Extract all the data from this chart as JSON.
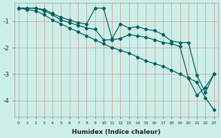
{
  "xlabel": "Humidex (Indice chaleur)",
  "ylabel": "",
  "background_color": "#cceee8",
  "grid_color": "#d4a0a0",
  "line_color": "#006060",
  "xlim": [
    -0.5,
    23.5
  ],
  "ylim": [
    -4.6,
    -0.3
  ],
  "xticks": [
    0,
    1,
    2,
    3,
    4,
    5,
    6,
    7,
    8,
    9,
    10,
    11,
    12,
    13,
    14,
    15,
    16,
    17,
    18,
    19,
    20,
    21,
    22,
    23
  ],
  "yticks": [
    -4,
    -3,
    -2,
    -1
  ],
  "series1_x": [
    0,
    1,
    2,
    3,
    4,
    5,
    6,
    7,
    8,
    9,
    10,
    11,
    12,
    13,
    14,
    15,
    16,
    17,
    18,
    19,
    20,
    21,
    22,
    23
  ],
  "series1_y": [
    -0.5,
    -0.5,
    -0.5,
    -0.55,
    -0.7,
    -0.85,
    -0.95,
    -1.05,
    -1.1,
    -0.5,
    -0.5,
    -1.65,
    -1.1,
    -1.25,
    -1.2,
    -1.3,
    -1.35,
    -1.5,
    -1.75,
    -1.8,
    -1.8,
    -3.05,
    -3.7,
    -3.0
  ],
  "series2_x": [
    0,
    1,
    2,
    3,
    4,
    5,
    6,
    7,
    8,
    9,
    10,
    11,
    12,
    13,
    14,
    15,
    16,
    17,
    18,
    19,
    20,
    21,
    22,
    23
  ],
  "series2_y": [
    -0.5,
    -0.5,
    -0.5,
    -0.6,
    -0.75,
    -0.95,
    -1.05,
    -1.15,
    -1.25,
    -1.3,
    -1.7,
    -1.7,
    -1.65,
    -1.5,
    -1.55,
    -1.6,
    -1.7,
    -1.8,
    -1.85,
    -1.95,
    -3.15,
    -3.8,
    -3.5,
    -3.0
  ],
  "series3_x": [
    0,
    1,
    2,
    3,
    4,
    5,
    6,
    7,
    8,
    9,
    10,
    11,
    12,
    13,
    14,
    15,
    16,
    17,
    18,
    19,
    20,
    21,
    22,
    23
  ],
  "series3_y": [
    -0.5,
    -0.55,
    -0.6,
    -0.75,
    -0.95,
    -1.1,
    -1.25,
    -1.4,
    -1.55,
    -1.7,
    -1.85,
    -2.0,
    -2.1,
    -2.2,
    -2.35,
    -2.5,
    -2.6,
    -2.7,
    -2.85,
    -3.0,
    -3.15,
    -3.3,
    -3.9,
    -4.35
  ]
}
